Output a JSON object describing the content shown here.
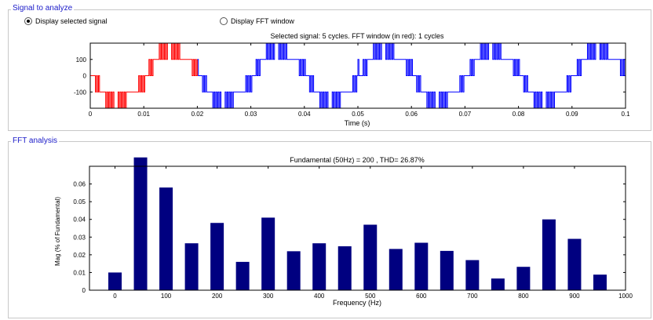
{
  "signal_panel": {
    "title": "Signal to analyze",
    "radio_selected_label": "Display selected signal",
    "radio_fft_label": "Display FFT window"
  },
  "fft_panel": {
    "title": "FFT analysis"
  },
  "colors": {
    "signal_selected": "#ff0000",
    "signal_other": "#0000ff",
    "bars": "#000080",
    "group_title": "#1a1ac8"
  },
  "chart_data": [
    {
      "type": "line",
      "title": "Selected signal: 5 cycles. FFT window (in red): 1 cycles",
      "xlabel": "Time (s)",
      "ylabel": "",
      "xlim": [
        0,
        0.1
      ],
      "ylim": [
        -200,
        200
      ],
      "xticks": [
        "0",
        "0.01",
        "0.02",
        "0.03",
        "0.04",
        "0.05",
        "0.06",
        "0.07",
        "0.08",
        "0.09",
        "0.1"
      ],
      "yticks": [
        "100",
        "0",
        "-100"
      ],
      "series": [
        {
          "color": "#ff0000",
          "x_range": [
            0,
            0.02
          ]
        },
        {
          "color": "#0000ff",
          "x_range": [
            0.02,
            0.1
          ]
        }
      ]
    },
    {
      "type": "bar",
      "title": "Fundamental (50Hz) = 200 , THD= 26.87%",
      "xlabel": "Frequency (Hz)",
      "ylabel": "Mag (% of Fundamental)",
      "xlim": [
        -50,
        1000
      ],
      "ylim": [
        0,
        0.07
      ],
      "xticks": [
        "0",
        "100",
        "200",
        "300",
        "400",
        "500",
        "600",
        "700",
        "800",
        "900",
        "1000"
      ],
      "yticks": [
        "0",
        "0.01",
        "0.02",
        "0.03",
        "0.04",
        "0.05",
        "0.06"
      ],
      "x": [
        0,
        50,
        100,
        150,
        200,
        250,
        300,
        350,
        400,
        450,
        500,
        550,
        600,
        650,
        700,
        750,
        800,
        850,
        900,
        950
      ],
      "values": [
        0.01,
        0.075,
        0.058,
        0.0265,
        0.038,
        0.016,
        0.041,
        0.022,
        0.0265,
        0.0248,
        0.037,
        0.0233,
        0.0268,
        0.0222,
        0.017,
        0.0066,
        0.0132,
        0.04,
        0.029,
        0.0088
      ]
    }
  ]
}
